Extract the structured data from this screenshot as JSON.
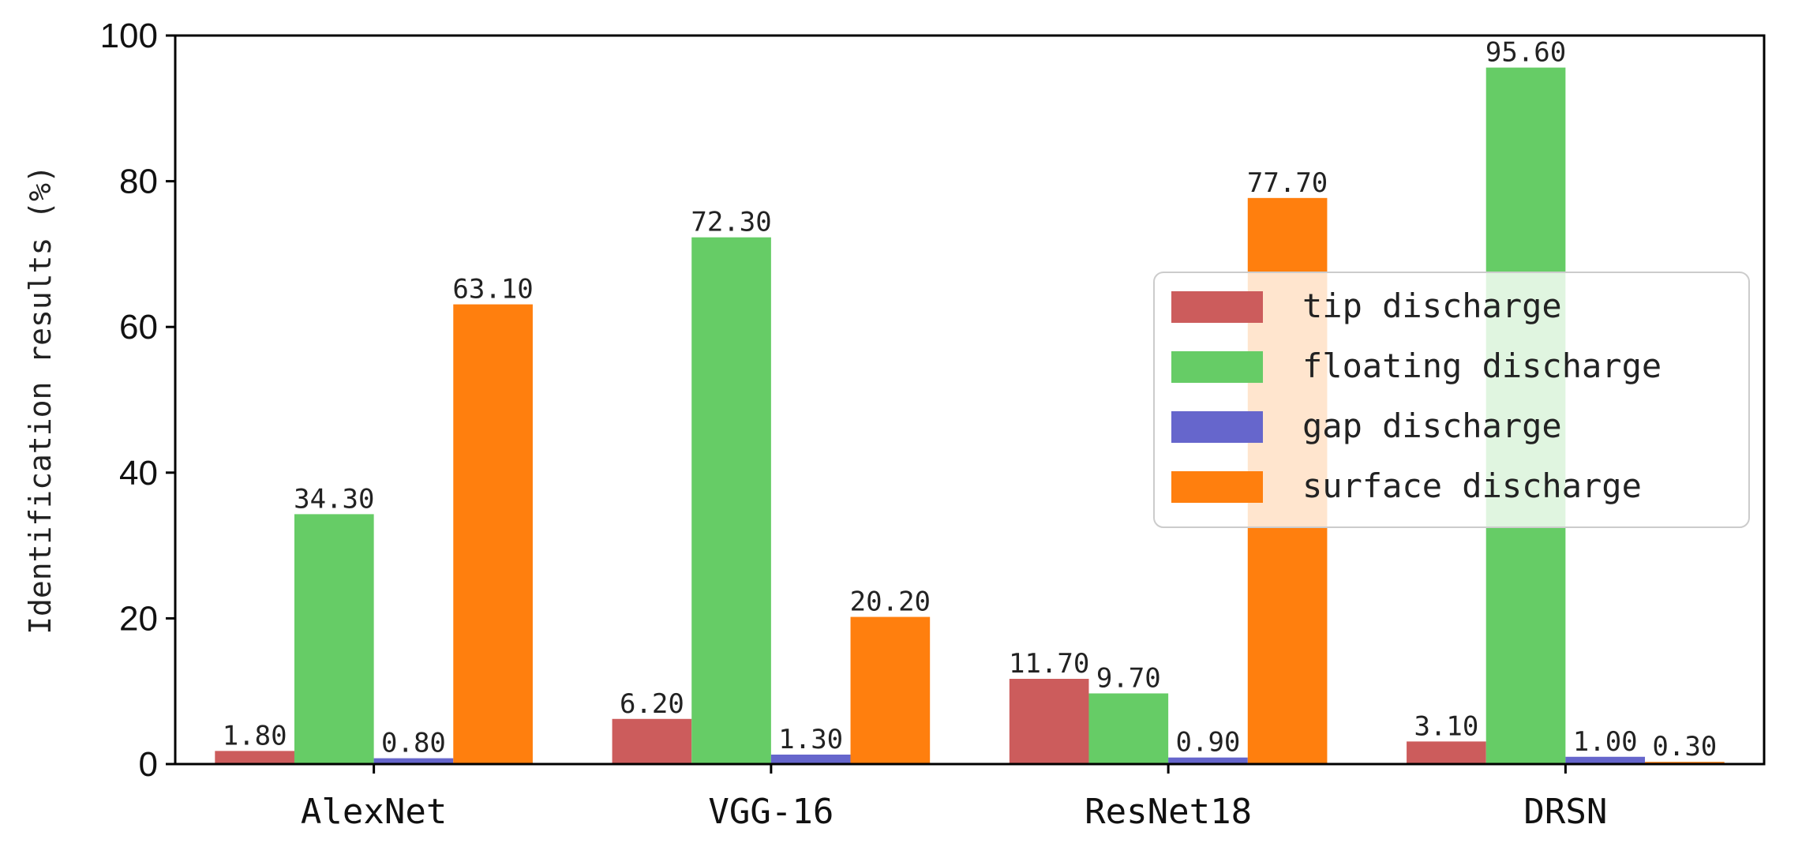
{
  "chart_data": {
    "type": "bar",
    "categories": [
      "AlexNet",
      "VGG-16",
      "ResNet18",
      "DRSN"
    ],
    "series": [
      {
        "name": "tip discharge",
        "color": "#cc5c5c",
        "values": [
          1.8,
          6.2,
          11.7,
          3.1
        ],
        "labels": [
          "1.80",
          "6.20",
          "11.70",
          "3.10"
        ]
      },
      {
        "name": "floating discharge",
        "color": "#66cc66",
        "values": [
          34.3,
          72.3,
          9.7,
          95.6
        ],
        "labels": [
          "34.30",
          "72.30",
          "9.70",
          "95.60"
        ]
      },
      {
        "name": "gap discharge",
        "color": "#6666cc",
        "values": [
          0.8,
          1.3,
          0.9,
          1.0
        ],
        "labels": [
          "0.80",
          "1.30",
          "0.90",
          "1.00"
        ]
      },
      {
        "name": "surface discharge",
        "color": "#ff7f0e",
        "values": [
          63.1,
          20.2,
          77.7,
          0.3
        ],
        "labels": [
          "63.10",
          "20.20",
          "77.70",
          "0.30"
        ]
      }
    ],
    "ylabel": "Identification results (%)",
    "xlabel": "",
    "ylim": [
      0,
      100
    ],
    "yticks": [
      "0",
      "20",
      "40",
      "60",
      "80",
      "100"
    ],
    "legend_position": "center-right",
    "grid": false
  }
}
